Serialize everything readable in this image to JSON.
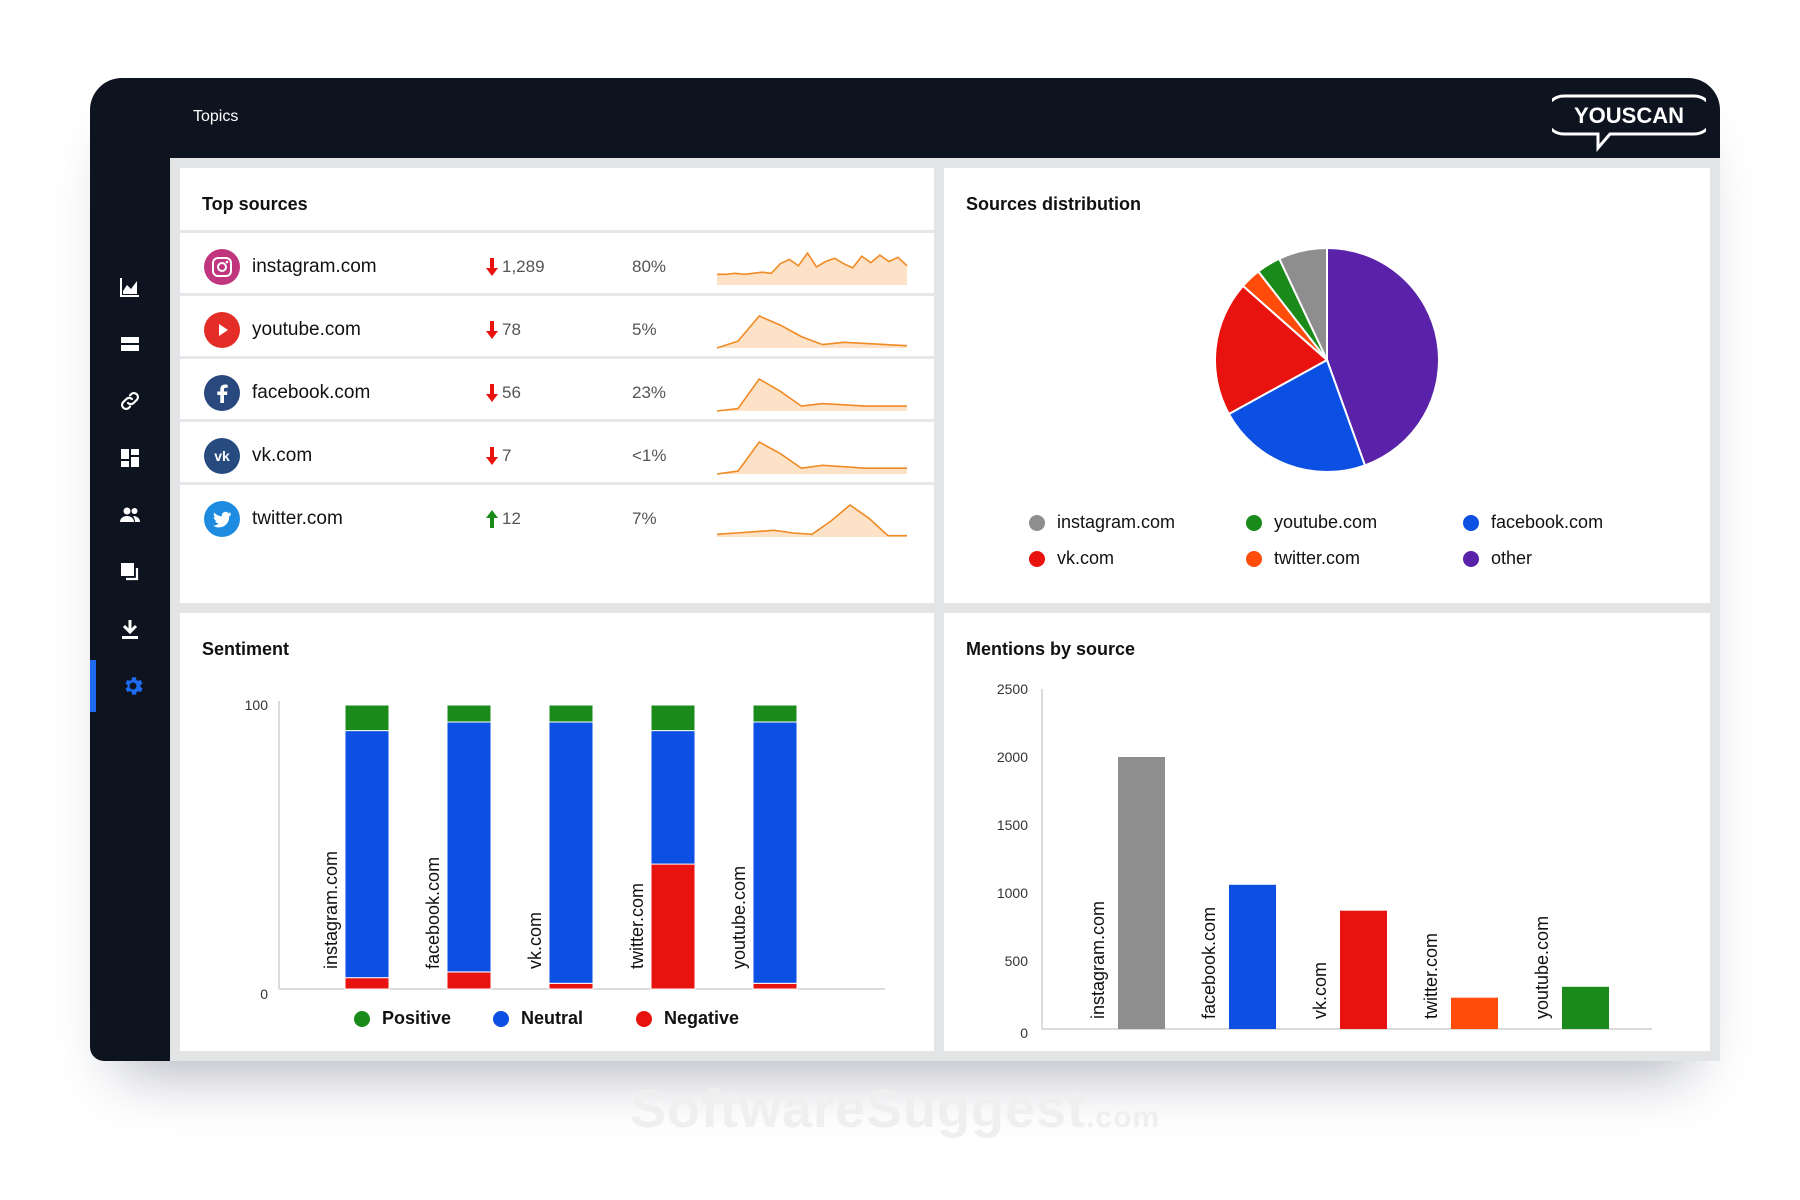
{
  "app": {
    "title": "Topics",
    "brand": "YOUSCAN"
  },
  "sidebar": {
    "items": [
      {
        "icon": "line-chart-icon",
        "active": false
      },
      {
        "icon": "list-icon",
        "active": false
      },
      {
        "icon": "link-icon",
        "active": false
      },
      {
        "icon": "dashboard-icon",
        "active": false
      },
      {
        "icon": "users-icon",
        "active": false
      },
      {
        "icon": "copy-icon",
        "active": false
      },
      {
        "icon": "download-icon",
        "active": false
      },
      {
        "icon": "gear-icon",
        "active": true
      }
    ]
  },
  "top_sources": {
    "title": "Top sources",
    "rows": [
      {
        "name": "instagram.com",
        "trend": "down",
        "count": "1,289",
        "percent": "80%",
        "icon": "instagram-icon",
        "color": "#c1357f"
      },
      {
        "name": "youtube.com",
        "trend": "down",
        "count": "78",
        "percent": "5%",
        "icon": "youtube-icon",
        "color": "#e52d27"
      },
      {
        "name": "facebook.com",
        "trend": "down",
        "count": "56",
        "percent": "23%",
        "icon": "facebook-icon",
        "color": "#29487d"
      },
      {
        "name": "vk.com",
        "trend": "down",
        "count": "7",
        "percent": "<1%",
        "icon": "vk-icon",
        "color": "#274b7e"
      },
      {
        "name": "twitter.com",
        "trend": "up",
        "count": "12",
        "percent": "7%",
        "icon": "twitter-icon",
        "color": "#1d8ce0"
      }
    ]
  },
  "sources_distribution": {
    "title": "Sources distribution",
    "legend": [
      {
        "label": "instagram.com",
        "color": "#8e8e8e"
      },
      {
        "label": "youtube.com",
        "color": "#1a8a1a"
      },
      {
        "label": "facebook.com",
        "color": "#0b4fe3"
      },
      {
        "label": "vk.com",
        "color": "#e8120e"
      },
      {
        "label": "twitter.com",
        "color": "#ff4c0a"
      },
      {
        "label": "other",
        "color": "#5a22a8"
      }
    ]
  },
  "sentiment": {
    "title": "Sentiment",
    "legend": [
      {
        "label": "Positive",
        "color": "#1a8a1a"
      },
      {
        "label": "Neutral",
        "color": "#0b4fe3"
      },
      {
        "label": "Negative",
        "color": "#e8120e"
      }
    ]
  },
  "mentions_by_source": {
    "title": "Mentions by source"
  },
  "chart_data": [
    {
      "type": "pie",
      "title": "Sources distribution",
      "labels": [
        "other",
        "facebook.com",
        "vk.com",
        "twitter.com",
        "youtube.com",
        "instagram.com"
      ],
      "values": [
        44.5,
        22.5,
        19.5,
        3.0,
        3.5,
        7.0
      ],
      "colors": [
        "#5a22a8",
        "#0b4fe3",
        "#e8120e",
        "#ff4c0a",
        "#1a8a1a",
        "#8e8e8e"
      ]
    },
    {
      "type": "bar",
      "stacked": true,
      "title": "Sentiment",
      "categories": [
        "instagram.com",
        "facebook.com",
        "vk.com",
        "twitter.com",
        "youtube.com"
      ],
      "series": [
        {
          "name": "Negative",
          "color": "#e8120e",
          "values": [
            4,
            6,
            2,
            44,
            2
          ]
        },
        {
          "name": "Neutral",
          "color": "#0b4fe3",
          "values": [
            87,
            88,
            92,
            47,
            92
          ]
        },
        {
          "name": "Positive",
          "color": "#1a8a1a",
          "values": [
            9,
            6,
            6,
            9,
            6
          ]
        }
      ],
      "ylim": [
        0,
        100
      ],
      "yticks": [
        "100",
        "0"
      ]
    },
    {
      "type": "bar",
      "title": "Mentions by source",
      "categories": [
        "instagram.com",
        "facebook.com",
        "vk.com",
        "twitter.com",
        "youtube.com"
      ],
      "values": [
        2000,
        1060,
        870,
        230,
        310
      ],
      "colors": [
        "#8e8e8e",
        "#0b4fe3",
        "#e8120e",
        "#ff4c0a",
        "#1a8a1a"
      ],
      "ylim": [
        0,
        2500
      ],
      "yticks": [
        "2500",
        "2000",
        "1500",
        "1000",
        "500",
        "0"
      ]
    }
  ],
  "sparklines": [
    [
      10,
      10,
      11,
      10,
      11,
      12,
      11,
      20,
      24,
      18,
      30,
      17,
      22,
      25,
      20,
      16,
      27,
      21,
      28,
      22,
      26,
      18
    ],
    [
      0,
      6,
      28,
      20,
      10,
      3,
      5,
      4,
      3,
      2
    ],
    [
      0,
      2,
      26,
      16,
      4,
      6,
      5,
      4,
      4,
      4
    ],
    [
      0,
      2,
      22,
      14,
      4,
      6,
      5,
      4,
      4,
      4
    ],
    [
      2,
      3,
      4,
      5,
      3,
      2,
      12,
      24,
      14,
      1,
      1
    ]
  ],
  "watermark": {
    "main": "SoftwareSuggest",
    "suffix": ".com"
  }
}
